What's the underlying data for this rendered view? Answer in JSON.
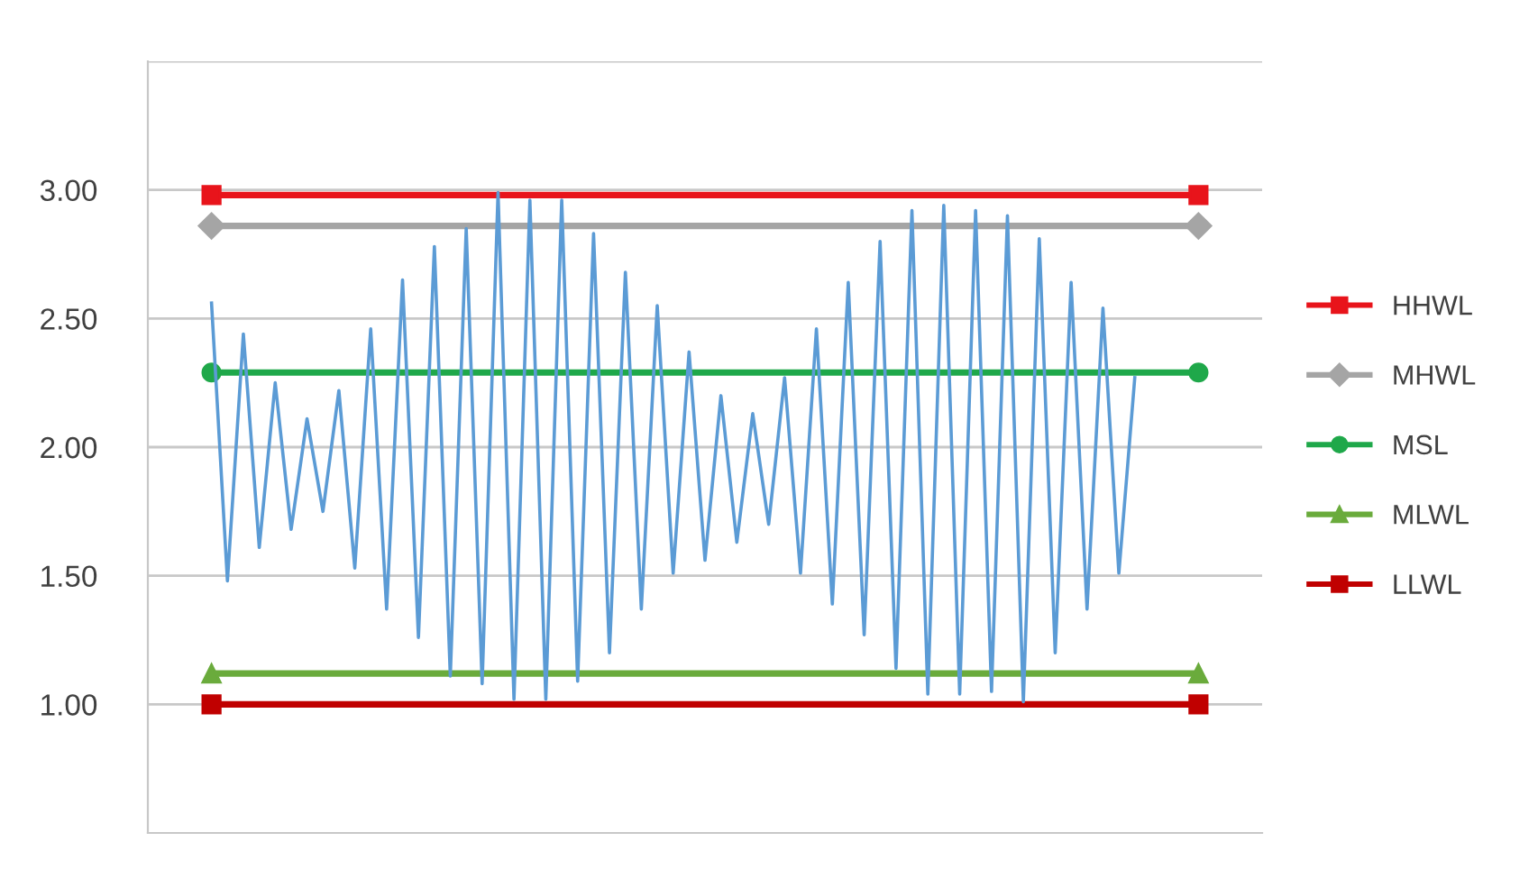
{
  "chart_data": {
    "type": "line",
    "categories": [
      null,
      null,
      null,
      null,
      null,
      null,
      null,
      null,
      null,
      null,
      null,
      null,
      null,
      null,
      null,
      null,
      null,
      null,
      null,
      null,
      null,
      null,
      null,
      null,
      null,
      null,
      null,
      null,
      null,
      null,
      null,
      null,
      null,
      null,
      null,
      null,
      null,
      null,
      null,
      null,
      null,
      null,
      null,
      null,
      null,
      null,
      null,
      null,
      null,
      null,
      null,
      null,
      null,
      null,
      null,
      null,
      null,
      null,
      null,
      null,
      null,
      null,
      null
    ],
    "series": [
      {
        "color": "#5b9bd5",
        "values": [
          2.56,
          1.48,
          2.44,
          1.61,
          2.25,
          1.68,
          2.11,
          1.75,
          2.22,
          1.53,
          2.46,
          1.37,
          2.65,
          1.26,
          2.78,
          1.11,
          2.85,
          1.08,
          2.99,
          1.02,
          2.96,
          1.02,
          2.96,
          1.09,
          2.83,
          1.2,
          2.68,
          1.37,
          2.55,
          1.51,
          2.37,
          1.56,
          2.2,
          1.63,
          2.13,
          1.7,
          2.27,
          1.51,
          2.46,
          1.39,
          2.64,
          1.27,
          2.8,
          1.14,
          2.92,
          1.04,
          2.94,
          1.04,
          2.92,
          1.05,
          2.9,
          1.01,
          2.81,
          1.2,
          2.64,
          1.37,
          2.54,
          1.51,
          2.27,
          null,
          null,
          null,
          null
        ]
      },
      {
        "name": "HHWL",
        "color": "#e8141b",
        "values": [
          2.98,
          2.98,
          2.98,
          2.98,
          2.98,
          2.98,
          2.98,
          2.98,
          2.98,
          2.98,
          2.98,
          2.98,
          2.98,
          2.98,
          2.98,
          2.98,
          2.98,
          2.98,
          2.98,
          2.98,
          2.98,
          2.98,
          2.98,
          2.98,
          2.98,
          2.98,
          2.98,
          2.98,
          2.98,
          2.98,
          2.98,
          2.98,
          2.98,
          2.98,
          2.98,
          2.98,
          2.98,
          2.98,
          2.98,
          2.98,
          2.98,
          2.98,
          2.98,
          2.98,
          2.98,
          2.98,
          2.98,
          2.98,
          2.98,
          2.98,
          2.98,
          2.98,
          2.98,
          2.98,
          2.98,
          2.98,
          2.98,
          2.98,
          2.98,
          2.98,
          2.98,
          2.98,
          2.98
        ]
      },
      {
        "name": "MHWL",
        "color": "#a5a5a5",
        "values": [
          2.86,
          2.86,
          2.86,
          2.86,
          2.86,
          2.86,
          2.86,
          2.86,
          2.86,
          2.86,
          2.86,
          2.86,
          2.86,
          2.86,
          2.86,
          2.86,
          2.86,
          2.86,
          2.86,
          2.86,
          2.86,
          2.86,
          2.86,
          2.86,
          2.86,
          2.86,
          2.86,
          2.86,
          2.86,
          2.86,
          2.86,
          2.86,
          2.86,
          2.86,
          2.86,
          2.86,
          2.86,
          2.86,
          2.86,
          2.86,
          2.86,
          2.86,
          2.86,
          2.86,
          2.86,
          2.86,
          2.86,
          2.86,
          2.86,
          2.86,
          2.86,
          2.86,
          2.86,
          2.86,
          2.86,
          2.86,
          2.86,
          2.86,
          2.86,
          2.86,
          2.86,
          2.86,
          2.86
        ]
      },
      {
        "name": "MSL",
        "color": "#1fa84a",
        "values": [
          2.29,
          2.29,
          2.29,
          2.29,
          2.29,
          2.29,
          2.29,
          2.29,
          2.29,
          2.29,
          2.29,
          2.29,
          2.29,
          2.29,
          2.29,
          2.29,
          2.29,
          2.29,
          2.29,
          2.29,
          2.29,
          2.29,
          2.29,
          2.29,
          2.29,
          2.29,
          2.29,
          2.29,
          2.29,
          2.29,
          2.29,
          2.29,
          2.29,
          2.29,
          2.29,
          2.29,
          2.29,
          2.29,
          2.29,
          2.29,
          2.29,
          2.29,
          2.29,
          2.29,
          2.29,
          2.29,
          2.29,
          2.29,
          2.29,
          2.29,
          2.29,
          2.29,
          2.29,
          2.29,
          2.29,
          2.29,
          2.29,
          2.29,
          2.29,
          2.29,
          2.29,
          2.29,
          2.29
        ]
      },
      {
        "name": "MLWL",
        "color": "#6aab3c",
        "values": [
          1.12,
          1.12,
          1.12,
          1.12,
          1.12,
          1.12,
          1.12,
          1.12,
          1.12,
          1.12,
          1.12,
          1.12,
          1.12,
          1.12,
          1.12,
          1.12,
          1.12,
          1.12,
          1.12,
          1.12,
          1.12,
          1.12,
          1.12,
          1.12,
          1.12,
          1.12,
          1.12,
          1.12,
          1.12,
          1.12,
          1.12,
          1.12,
          1.12,
          1.12,
          1.12,
          1.12,
          1.12,
          1.12,
          1.12,
          1.12,
          1.12,
          1.12,
          1.12,
          1.12,
          1.12,
          1.12,
          1.12,
          1.12,
          1.12,
          1.12,
          1.12,
          1.12,
          1.12,
          1.12,
          1.12,
          1.12,
          1.12,
          1.12,
          1.12,
          1.12,
          1.12,
          1.12,
          1.12
        ]
      },
      {
        "name": "LLWL",
        "color": "#c00000",
        "values": [
          1.0,
          1.0,
          1.0,
          1.0,
          1.0,
          1.0,
          1.0,
          1.0,
          1.0,
          1.0,
          1.0,
          1.0,
          1.0,
          1.0,
          1.0,
          1.0,
          1.0,
          1.0,
          1.0,
          1.0,
          1.0,
          1.0,
          1.0,
          1.0,
          1.0,
          1.0,
          1.0,
          1.0,
          1.0,
          1.0,
          1.0,
          1.0,
          1.0,
          1.0,
          1.0,
          1.0,
          1.0,
          1.0,
          1.0,
          1.0,
          1.0,
          1.0,
          1.0,
          1.0,
          1.0,
          1.0,
          1.0,
          1.0,
          1.0,
          1.0,
          1.0,
          1.0,
          1.0,
          1.0,
          1.0,
          1.0,
          1.0,
          1.0,
          1.0,
          1.0,
          1.0,
          1.0,
          1.0
        ]
      }
    ],
    "ylim": [
      0.5,
      3.5
    ],
    "yticks": [
      {
        "value": 1,
        "label": "1.00"
      },
      {
        "value": 1.5,
        "label": "1.50"
      },
      {
        "value": 2,
        "label": "2.00"
      },
      {
        "value": 2.5,
        "label": "2.50"
      },
      {
        "value": 3,
        "label": "3.00"
      },
      {
        "value": 3.5,
        "label": null
      }
    ],
    "grid": "y",
    "legend": "right",
    "tick_labels": "y"
  }
}
